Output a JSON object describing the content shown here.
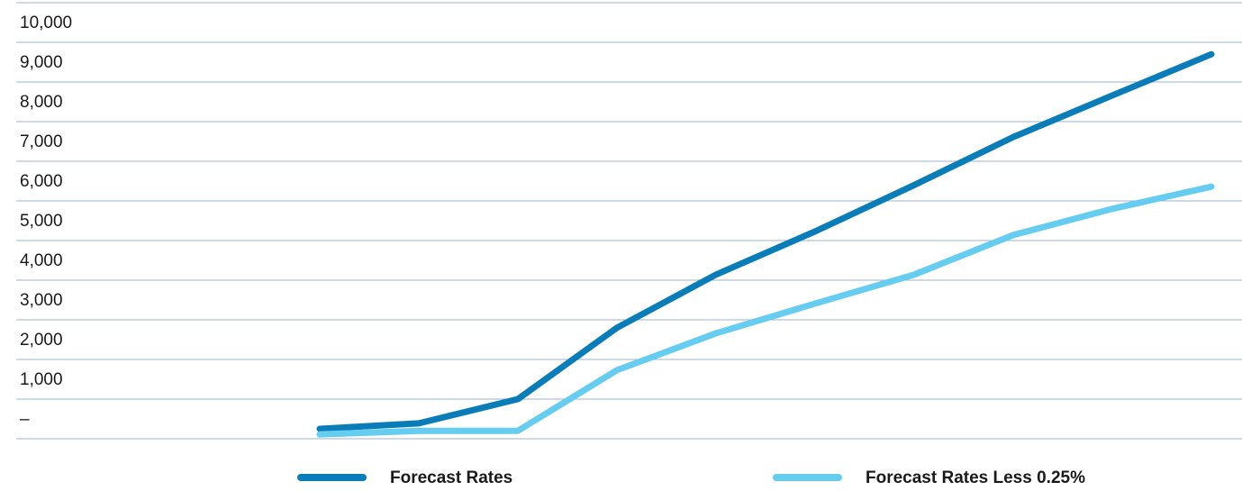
{
  "chart_data": {
    "type": "line",
    "categories": [
      null,
      null,
      null,
      null,
      null,
      null,
      null,
      null,
      null,
      null
    ],
    "series": [
      {
        "name": "Forecast Rates",
        "color": "#0a7db8",
        "values": [
          250,
          390,
          1000,
          2800,
          4140,
          5230,
          6400,
          7610,
          8660,
          9700
        ]
      },
      {
        "name": "Forecast Rates Less 0.25%",
        "color": "#66ccf0",
        "values": [
          110,
          200,
          200,
          1730,
          2660,
          3410,
          4140,
          5140,
          5800,
          6360
        ]
      }
    ],
    "ylim": [
      0,
      11000
    ],
    "yticks": [
      {
        "value": 0,
        "label": "–"
      },
      {
        "value": 1000,
        "label": "1,000"
      },
      {
        "value": 2000,
        "label": "2,000"
      },
      {
        "value": 3000,
        "label": "3,000"
      },
      {
        "value": 4000,
        "label": "4,000"
      },
      {
        "value": 5000,
        "label": "5,000"
      },
      {
        "value": 6000,
        "label": "6,000"
      },
      {
        "value": 7000,
        "label": "7,000"
      },
      {
        "value": 8000,
        "label": "8,000"
      },
      {
        "value": 9000,
        "label": "9,000"
      },
      {
        "value": 10000,
        "label": "10,000"
      }
    ],
    "grid": true,
    "legend": "bottom"
  }
}
